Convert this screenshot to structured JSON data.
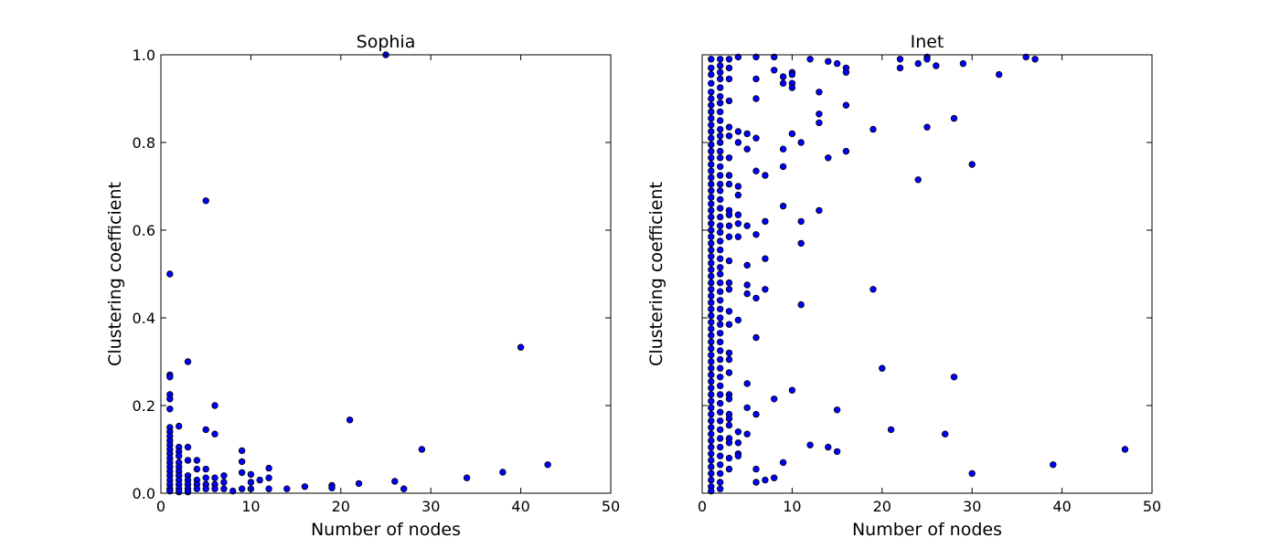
{
  "figure": {
    "point_color": "#0000ff",
    "edge_color": "#000000"
  },
  "chart_data": [
    {
      "type": "scatter",
      "title": "Sophia",
      "xlabel": "Number of nodes",
      "ylabel": "Clustering coefficient",
      "xlim": [
        0,
        50
      ],
      "ylim": [
        0,
        1.0
      ],
      "xticks": [
        0,
        10,
        20,
        30,
        40,
        50
      ],
      "xtick_labels": [
        "0",
        "10",
        "20",
        "30",
        "40",
        "50"
      ],
      "yticks": [
        0,
        0.2,
        0.4,
        0.6,
        0.8,
        1.0
      ],
      "ytick_labels": [
        "0.0",
        "0.2",
        "0.4",
        "0.6",
        "0.8",
        "1.0"
      ],
      "points": [
        [
          1,
          0.5
        ],
        [
          1,
          0.27
        ],
        [
          1,
          0.265
        ],
        [
          1,
          0.225
        ],
        [
          1,
          0.215
        ],
        [
          1,
          0.192
        ],
        [
          1,
          0.15
        ],
        [
          1,
          0.14
        ],
        [
          1,
          0.13
        ],
        [
          1,
          0.12
        ],
        [
          1,
          0.11
        ],
        [
          1,
          0.1
        ],
        [
          1,
          0.09
        ],
        [
          1,
          0.08
        ],
        [
          1,
          0.07
        ],
        [
          1,
          0.06
        ],
        [
          1,
          0.05
        ],
        [
          1,
          0.04
        ],
        [
          1,
          0.03
        ],
        [
          1,
          0.02
        ],
        [
          1,
          0.01
        ],
        [
          1,
          0.005
        ],
        [
          2,
          0.153
        ],
        [
          2,
          0.105
        ],
        [
          2,
          0.095
        ],
        [
          2,
          0.085
        ],
        [
          2,
          0.07
        ],
        [
          2,
          0.06
        ],
        [
          2,
          0.05
        ],
        [
          2,
          0.04
        ],
        [
          2,
          0.03
        ],
        [
          2,
          0.02
        ],
        [
          2,
          0.01
        ],
        [
          2,
          0.003
        ],
        [
          3,
          0.3
        ],
        [
          3,
          0.105
        ],
        [
          3,
          0.075
        ],
        [
          3,
          0.04
        ],
        [
          3,
          0.03
        ],
        [
          3,
          0.02
        ],
        [
          3,
          0.01
        ],
        [
          3,
          0.003
        ],
        [
          4,
          0.075
        ],
        [
          4,
          0.055
        ],
        [
          4,
          0.03
        ],
        [
          4,
          0.02
        ],
        [
          4,
          0.01
        ],
        [
          5,
          0.667
        ],
        [
          5,
          0.145
        ],
        [
          5,
          0.055
        ],
        [
          5,
          0.035
        ],
        [
          5,
          0.02
        ],
        [
          5,
          0.01
        ],
        [
          6,
          0.2
        ],
        [
          6,
          0.135
        ],
        [
          6,
          0.035
        ],
        [
          6,
          0.02
        ],
        [
          6,
          0.01
        ],
        [
          7,
          0.04
        ],
        [
          7,
          0.025
        ],
        [
          7,
          0.01
        ],
        [
          8,
          0.005
        ],
        [
          9,
          0.097
        ],
        [
          9,
          0.072
        ],
        [
          9,
          0.047
        ],
        [
          9,
          0.01
        ],
        [
          10,
          0.043
        ],
        [
          10,
          0.025
        ],
        [
          10,
          0.01
        ],
        [
          11,
          0.03
        ],
        [
          12,
          0.057
        ],
        [
          12,
          0.035
        ],
        [
          12,
          0.01
        ],
        [
          14,
          0.01
        ],
        [
          16,
          0.015
        ],
        [
          19,
          0.018
        ],
        [
          19,
          0.012
        ],
        [
          21,
          0.167
        ],
        [
          22,
          0.022
        ],
        [
          25,
          1.0
        ],
        [
          26,
          0.027
        ],
        [
          27,
          0.01
        ],
        [
          29,
          0.1
        ],
        [
          34,
          0.035
        ],
        [
          38,
          0.048
        ],
        [
          40,
          0.333
        ],
        [
          43,
          0.065
        ]
      ]
    },
    {
      "type": "scatter",
      "title": "Inet",
      "xlabel": "Number of nodes",
      "ylabel": "Clustering coefficient",
      "xlim": [
        0,
        50
      ],
      "ylim": [
        0,
        1.0
      ],
      "xticks": [
        0,
        10,
        20,
        30,
        40,
        50
      ],
      "xtick_labels": [
        "0",
        "10",
        "20",
        "30",
        "40",
        "50"
      ],
      "yticks": [
        0,
        0.2,
        0.4,
        0.6,
        0.8,
        1.0
      ],
      "ytick_labels": [],
      "points": [
        [
          1,
          0.99
        ],
        [
          1,
          0.97
        ],
        [
          1,
          0.955
        ],
        [
          1,
          0.935
        ],
        [
          1,
          0.915
        ],
        [
          1,
          0.9
        ],
        [
          1,
          0.885
        ],
        [
          1,
          0.87
        ],
        [
          1,
          0.855
        ],
        [
          1,
          0.84
        ],
        [
          1,
          0.825
        ],
        [
          1,
          0.81
        ],
        [
          1,
          0.795
        ],
        [
          1,
          0.78
        ],
        [
          1,
          0.765
        ],
        [
          1,
          0.75
        ],
        [
          1,
          0.735
        ],
        [
          1,
          0.72
        ],
        [
          1,
          0.705
        ],
        [
          1,
          0.69
        ],
        [
          1,
          0.675
        ],
        [
          1,
          0.66
        ],
        [
          1,
          0.645
        ],
        [
          1,
          0.63
        ],
        [
          1,
          0.615
        ],
        [
          1,
          0.6
        ],
        [
          1,
          0.585
        ],
        [
          1,
          0.57
        ],
        [
          1,
          0.555
        ],
        [
          1,
          0.54
        ],
        [
          1,
          0.525
        ],
        [
          1,
          0.51
        ],
        [
          1,
          0.495
        ],
        [
          1,
          0.48
        ],
        [
          1,
          0.465
        ],
        [
          1,
          0.45
        ],
        [
          1,
          0.435
        ],
        [
          1,
          0.42
        ],
        [
          1,
          0.405
        ],
        [
          1,
          0.39
        ],
        [
          1,
          0.375
        ],
        [
          1,
          0.36
        ],
        [
          1,
          0.345
        ],
        [
          1,
          0.33
        ],
        [
          1,
          0.315
        ],
        [
          1,
          0.3
        ],
        [
          1,
          0.285
        ],
        [
          1,
          0.27
        ],
        [
          1,
          0.255
        ],
        [
          1,
          0.24
        ],
        [
          1,
          0.225
        ],
        [
          1,
          0.21
        ],
        [
          1,
          0.195
        ],
        [
          1,
          0.18
        ],
        [
          1,
          0.165
        ],
        [
          1,
          0.15
        ],
        [
          1,
          0.135
        ],
        [
          1,
          0.12
        ],
        [
          1,
          0.105
        ],
        [
          1,
          0.09
        ],
        [
          1,
          0.075
        ],
        [
          1,
          0.06
        ],
        [
          1,
          0.045
        ],
        [
          1,
          0.03
        ],
        [
          1,
          0.015
        ],
        [
          1,
          0.005
        ],
        [
          2,
          0.99
        ],
        [
          2,
          0.975
        ],
        [
          2,
          0.96
        ],
        [
          2,
          0.945
        ],
        [
          2,
          0.925
        ],
        [
          2,
          0.905
        ],
        [
          2,
          0.89
        ],
        [
          2,
          0.87
        ],
        [
          2,
          0.85
        ],
        [
          2,
          0.83
        ],
        [
          2,
          0.815
        ],
        [
          2,
          0.8
        ],
        [
          2,
          0.78
        ],
        [
          2,
          0.765
        ],
        [
          2,
          0.745
        ],
        [
          2,
          0.725
        ],
        [
          2,
          0.705
        ],
        [
          2,
          0.69
        ],
        [
          2,
          0.67
        ],
        [
          2,
          0.65
        ],
        [
          2,
          0.63
        ],
        [
          2,
          0.61
        ],
        [
          2,
          0.595
        ],
        [
          2,
          0.575
        ],
        [
          2,
          0.555
        ],
        [
          2,
          0.535
        ],
        [
          2,
          0.515
        ],
        [
          2,
          0.5
        ],
        [
          2,
          0.48
        ],
        [
          2,
          0.46
        ],
        [
          2,
          0.44
        ],
        [
          2,
          0.42
        ],
        [
          2,
          0.4
        ],
        [
          2,
          0.385
        ],
        [
          2,
          0.365
        ],
        [
          2,
          0.345
        ],
        [
          2,
          0.325
        ],
        [
          2,
          0.305
        ],
        [
          2,
          0.285
        ],
        [
          2,
          0.265
        ],
        [
          2,
          0.245
        ],
        [
          2,
          0.225
        ],
        [
          2,
          0.205
        ],
        [
          2,
          0.185
        ],
        [
          2,
          0.165
        ],
        [
          2,
          0.145
        ],
        [
          2,
          0.125
        ],
        [
          2,
          0.105
        ],
        [
          2,
          0.085
        ],
        [
          2,
          0.065
        ],
        [
          2,
          0.045
        ],
        [
          2,
          0.025
        ],
        [
          2,
          0.01
        ],
        [
          3,
          0.99
        ],
        [
          3,
          0.97
        ],
        [
          3,
          0.945
        ],
        [
          3,
          0.895
        ],
        [
          3,
          0.835
        ],
        [
          3,
          0.815
        ],
        [
          3,
          0.765
        ],
        [
          3,
          0.725
        ],
        [
          3,
          0.705
        ],
        [
          3,
          0.645
        ],
        [
          3,
          0.635
        ],
        [
          3,
          0.61
        ],
        [
          3,
          0.585
        ],
        [
          3,
          0.53
        ],
        [
          3,
          0.48
        ],
        [
          3,
          0.465
        ],
        [
          3,
          0.415
        ],
        [
          3,
          0.385
        ],
        [
          3,
          0.32
        ],
        [
          3,
          0.305
        ],
        [
          3,
          0.275
        ],
        [
          3,
          0.225
        ],
        [
          3,
          0.215
        ],
        [
          3,
          0.18
        ],
        [
          3,
          0.17
        ],
        [
          3,
          0.155
        ],
        [
          3,
          0.125
        ],
        [
          3,
          0.115
        ],
        [
          3,
          0.08
        ],
        [
          3,
          0.055
        ],
        [
          4,
          0.995
        ],
        [
          4,
          0.825
        ],
        [
          4,
          0.8
        ],
        [
          4,
          0.7
        ],
        [
          4,
          0.68
        ],
        [
          4,
          0.635
        ],
        [
          4,
          0.615
        ],
        [
          4,
          0.585
        ],
        [
          4,
          0.395
        ],
        [
          4,
          0.14
        ],
        [
          4,
          0.115
        ],
        [
          4,
          0.09
        ],
        [
          4,
          0.085
        ],
        [
          5,
          0.82
        ],
        [
          5,
          0.785
        ],
        [
          5,
          0.61
        ],
        [
          5,
          0.52
        ],
        [
          5,
          0.475
        ],
        [
          5,
          0.455
        ],
        [
          5,
          0.25
        ],
        [
          5,
          0.195
        ],
        [
          5,
          0.135
        ],
        [
          6,
          0.995
        ],
        [
          6,
          0.945
        ],
        [
          6,
          0.9
        ],
        [
          6,
          0.81
        ],
        [
          6,
          0.735
        ],
        [
          6,
          0.59
        ],
        [
          6,
          0.445
        ],
        [
          6,
          0.355
        ],
        [
          6,
          0.18
        ],
        [
          6,
          0.055
        ],
        [
          6,
          0.025
        ],
        [
          7,
          0.725
        ],
        [
          7,
          0.62
        ],
        [
          7,
          0.535
        ],
        [
          7,
          0.465
        ],
        [
          7,
          0.03
        ],
        [
          8,
          0.995
        ],
        [
          8,
          0.965
        ],
        [
          8,
          0.215
        ],
        [
          8,
          0.035
        ],
        [
          9,
          0.95
        ],
        [
          9,
          0.935
        ],
        [
          9,
          0.785
        ],
        [
          9,
          0.745
        ],
        [
          9,
          0.655
        ],
        [
          9,
          0.07
        ],
        [
          10,
          0.96
        ],
        [
          10,
          0.955
        ],
        [
          10,
          0.935
        ],
        [
          10,
          0.925
        ],
        [
          10,
          0.82
        ],
        [
          10,
          0.235
        ],
        [
          11,
          0.8
        ],
        [
          11,
          0.62
        ],
        [
          11,
          0.57
        ],
        [
          11,
          0.43
        ],
        [
          12,
          0.99
        ],
        [
          12,
          0.11
        ],
        [
          13,
          0.915
        ],
        [
          13,
          0.865
        ],
        [
          13,
          0.845
        ],
        [
          13,
          0.645
        ],
        [
          14,
          0.985
        ],
        [
          14,
          0.765
        ],
        [
          14,
          0.105
        ],
        [
          15,
          0.98
        ],
        [
          15,
          0.19
        ],
        [
          15,
          0.095
        ],
        [
          16,
          0.97
        ],
        [
          16,
          0.96
        ],
        [
          16,
          0.885
        ],
        [
          16,
          0.78
        ],
        [
          19,
          0.83
        ],
        [
          19,
          0.465
        ],
        [
          20,
          0.285
        ],
        [
          21,
          0.145
        ],
        [
          22,
          0.99
        ],
        [
          22,
          0.97
        ],
        [
          24,
          0.98
        ],
        [
          24,
          0.715
        ],
        [
          25,
          0.995
        ],
        [
          25,
          0.99
        ],
        [
          25,
          0.835
        ],
        [
          26,
          0.975
        ],
        [
          27,
          0.135
        ],
        [
          28,
          0.855
        ],
        [
          28,
          0.265
        ],
        [
          29,
          0.98
        ],
        [
          30,
          0.75
        ],
        [
          30,
          0.045
        ],
        [
          33,
          0.955
        ],
        [
          36,
          0.995
        ],
        [
          37,
          0.99
        ],
        [
          39,
          0.065
        ],
        [
          47,
          0.1
        ]
      ]
    }
  ]
}
